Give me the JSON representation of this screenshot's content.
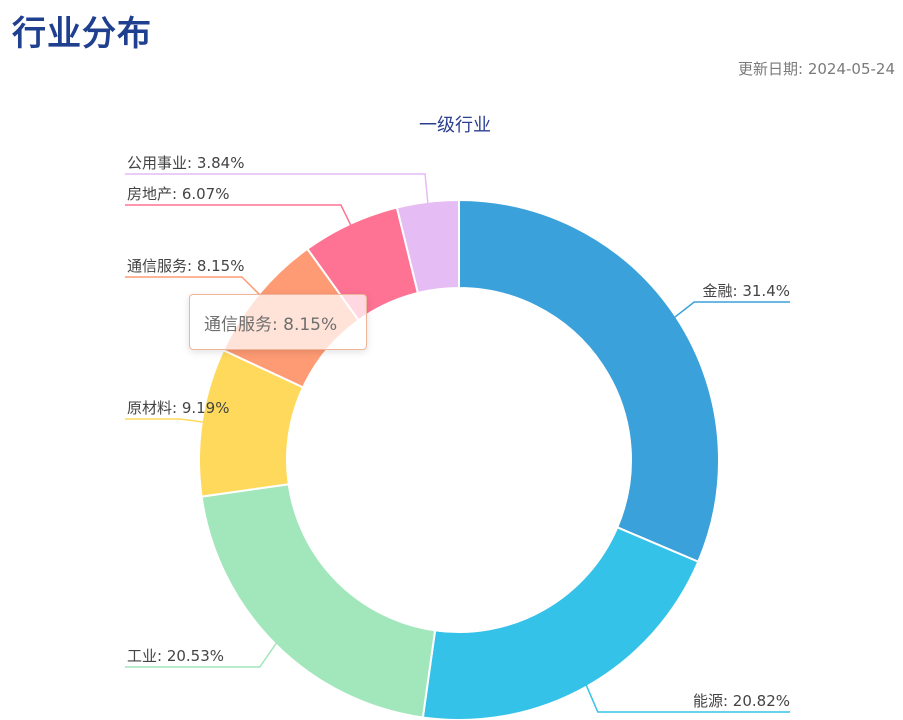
{
  "page": {
    "title": "行业分布",
    "update_date": "更新日期: 2024-05-24"
  },
  "tooltip": {
    "text": "通信服务: 8.15%"
  },
  "chart_data": {
    "type": "pie",
    "variant": "donut",
    "title": "一级行业",
    "unit": "%",
    "slices": [
      {
        "label": "金融",
        "value": 31.4,
        "label_text": "金融: 31.4%",
        "color": "#3aa1db"
      },
      {
        "label": "能源",
        "value": 20.82,
        "label_text": "能源: 20.82%",
        "color": "#35c2e8"
      },
      {
        "label": "工业",
        "value": 20.53,
        "label_text": "工业: 20.53%",
        "color": "#a2e6bb"
      },
      {
        "label": "原材料",
        "value": 9.19,
        "label_text": "原材料: 9.19%",
        "color": "#ffd95c"
      },
      {
        "label": "通信服务",
        "value": 8.15,
        "label_text": "通信服务: 8.15%",
        "color": "#fe9b74"
      },
      {
        "label": "房地产",
        "value": 6.07,
        "label_text": "房地产: 6.07%",
        "color": "#fe7394"
      },
      {
        "label": "公用事业",
        "value": 3.84,
        "label_text": "公用事业: 3.84%",
        "color": "#e6bcf4"
      }
    ]
  }
}
